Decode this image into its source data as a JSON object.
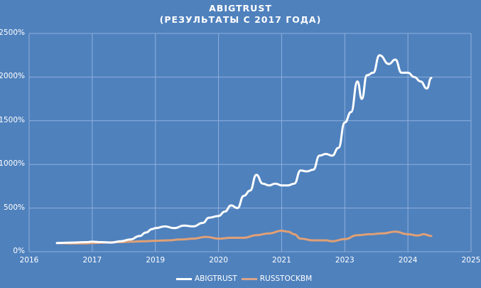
{
  "title": {
    "line1": "ABIGTRUST",
    "line2": "(РЕЗУЛЬТАТЫ С 2017 ГОДА)"
  },
  "y_axis": {
    "ticks": [
      "0%",
      "500%",
      "1000%",
      "1500%",
      "2000%",
      "2500%"
    ]
  },
  "x_axis": {
    "ticks": [
      "2016",
      "2017",
      "2019",
      "2020",
      "2021",
      "2023",
      "2024",
      "2025"
    ]
  },
  "legend": {
    "items": [
      {
        "label": "ABIGTRUST",
        "color": "#ffffff"
      },
      {
        "label": "RUSSTOCKBM",
        "color": "#e0a075"
      }
    ]
  },
  "colors": {
    "background": "#4f81bd",
    "grid": "#8fb0dc",
    "abigtrust": "#ffffff",
    "russtockbm": "#e0a075"
  },
  "chart_data": {
    "type": "line",
    "title": "ABIGTRUST (РЕЗУЛЬТАТЫ С 2017 ГОДА)",
    "xlabel": "",
    "ylabel": "",
    "ylim": [
      0,
      2500
    ],
    "y_unit": "%",
    "x_tick_labels": [
      "2016",
      "2017",
      "2019",
      "2020",
      "2021",
      "2023",
      "2024",
      "2025"
    ],
    "grid": true,
    "legend_position": "bottom",
    "series": [
      {
        "name": "ABIGTRUST",
        "color": "#ffffff",
        "points": [
          [
            0.44,
            100
          ],
          [
            0.7,
            105
          ],
          [
            0.9,
            110
          ],
          [
            1.0,
            115
          ],
          [
            1.15,
            110
          ],
          [
            1.3,
            105
          ],
          [
            1.45,
            120
          ],
          [
            1.6,
            140
          ],
          [
            1.75,
            180
          ],
          [
            1.85,
            220
          ],
          [
            1.95,
            260
          ],
          [
            2.0,
            270
          ],
          [
            2.15,
            290
          ],
          [
            2.3,
            270
          ],
          [
            2.45,
            300
          ],
          [
            2.6,
            290
          ],
          [
            2.75,
            330
          ],
          [
            2.85,
            390
          ],
          [
            3.0,
            410
          ],
          [
            3.1,
            460
          ],
          [
            3.2,
            530
          ],
          [
            3.3,
            500
          ],
          [
            3.4,
            640
          ],
          [
            3.5,
            700
          ],
          [
            3.6,
            880
          ],
          [
            3.7,
            780
          ],
          [
            3.8,
            760
          ],
          [
            3.9,
            780
          ],
          [
            4.0,
            760
          ],
          [
            4.1,
            760
          ],
          [
            4.2,
            780
          ],
          [
            4.3,
            930
          ],
          [
            4.4,
            920
          ],
          [
            4.5,
            940
          ],
          [
            4.6,
            1100
          ],
          [
            4.7,
            1120
          ],
          [
            4.8,
            1100
          ],
          [
            4.9,
            1190
          ],
          [
            5.0,
            1480
          ],
          [
            5.1,
            1600
          ],
          [
            5.2,
            1950
          ],
          [
            5.27,
            1750
          ],
          [
            5.35,
            2020
          ],
          [
            5.45,
            2050
          ],
          [
            5.55,
            2250
          ],
          [
            5.7,
            2150
          ],
          [
            5.8,
            2200
          ],
          [
            5.9,
            2050
          ],
          [
            6.0,
            2050
          ],
          [
            6.1,
            2000
          ],
          [
            6.2,
            1950
          ],
          [
            6.3,
            1870
          ],
          [
            6.37,
            1990
          ]
        ]
      },
      {
        "name": "RUSSTOCKBM",
        "color": "#e0a075",
        "points": [
          [
            0.44,
            100
          ],
          [
            0.7,
            95
          ],
          [
            0.9,
            95
          ],
          [
            1.0,
            100
          ],
          [
            1.2,
            105
          ],
          [
            1.4,
            110
          ],
          [
            1.6,
            115
          ],
          [
            1.8,
            120
          ],
          [
            2.0,
            125
          ],
          [
            2.2,
            130
          ],
          [
            2.4,
            140
          ],
          [
            2.6,
            150
          ],
          [
            2.8,
            170
          ],
          [
            3.0,
            150
          ],
          [
            3.2,
            160
          ],
          [
            3.4,
            160
          ],
          [
            3.6,
            190
          ],
          [
            3.8,
            210
          ],
          [
            4.0,
            240
          ],
          [
            4.1,
            230
          ],
          [
            4.2,
            200
          ],
          [
            4.3,
            150
          ],
          [
            4.5,
            130
          ],
          [
            4.7,
            130
          ],
          [
            4.8,
            120
          ],
          [
            5.0,
            145
          ],
          [
            5.2,
            190
          ],
          [
            5.4,
            200
          ],
          [
            5.6,
            210
          ],
          [
            5.8,
            230
          ],
          [
            6.0,
            200
          ],
          [
            6.15,
            185
          ],
          [
            6.25,
            200
          ],
          [
            6.37,
            180
          ]
        ]
      }
    ]
  }
}
